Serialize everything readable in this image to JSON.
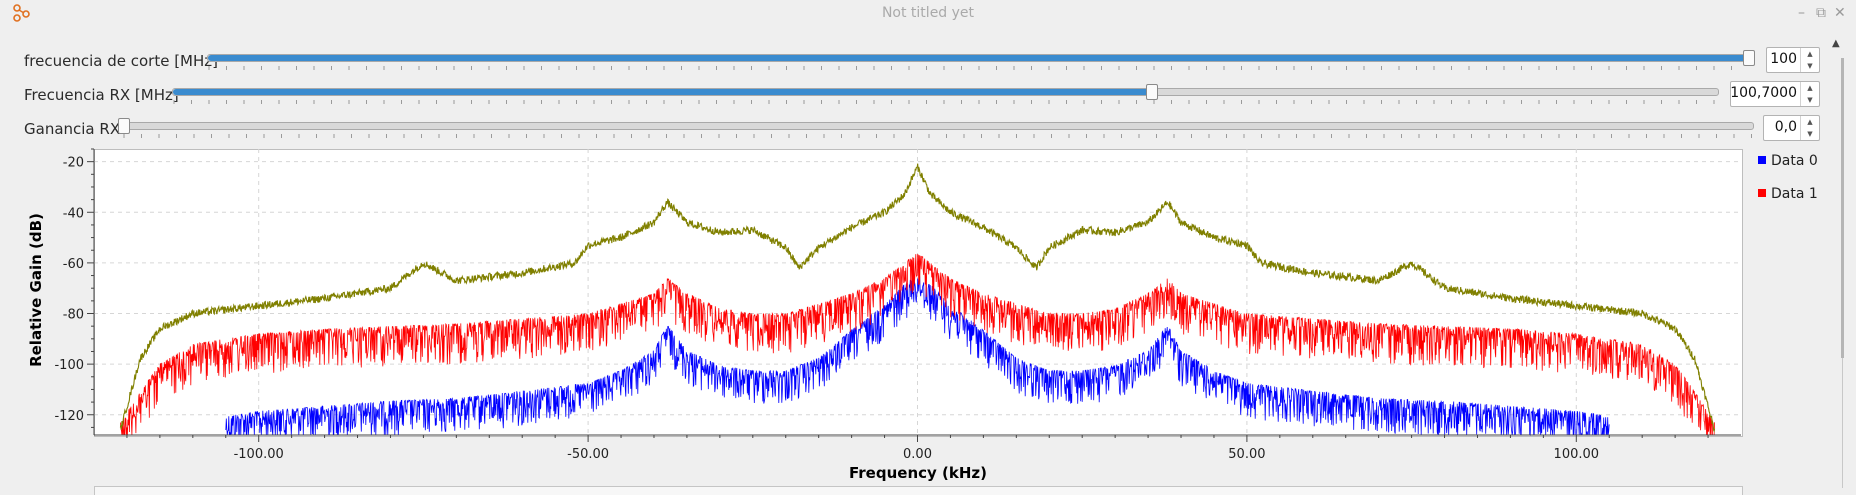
{
  "window": {
    "title": "Not titled yet",
    "app_icon": "gnuradio-logo-icon",
    "buttons": [
      "minimize-icon",
      "restore-icon",
      "close-icon"
    ]
  },
  "controls": [
    {
      "id": "cutoff",
      "label": "frecuencia de corte [MHz]",
      "value": "100",
      "fraction": 1.0
    },
    {
      "id": "rxfreq",
      "label": "Frecuencia RX [MHz]",
      "value": "100,7000",
      "fraction": 0.633
    },
    {
      "id": "gain",
      "label": "Ganancia RX",
      "value": "0,0",
      "fraction": 0.0
    }
  ],
  "legend": [
    {
      "name": "Data 0",
      "color": "#0000ff"
    },
    {
      "name": "Data 1",
      "color": "#ff0000"
    }
  ],
  "chart_data": {
    "type": "line",
    "title": "",
    "xlabel": "Frequency (kHz)",
    "ylabel": "Relative Gain (dB)",
    "xlim": [
      -125,
      125
    ],
    "ylim": [
      -128,
      -15
    ],
    "x_ticks": [
      "-100.00",
      "-50.00",
      "0.00",
      "50.00",
      "100.00"
    ],
    "x_tick_values": [
      -100,
      -50,
      0,
      50,
      100
    ],
    "y_ticks": [
      "-20",
      "-40",
      "-60",
      "-80",
      "-100",
      "-120"
    ],
    "y_tick_values": [
      -20,
      -40,
      -60,
      -80,
      -100,
      -120
    ],
    "grid": true,
    "series": [
      {
        "name": "Data 0",
        "color": "#0000ff",
        "x": [
          -105,
          -100,
          -90,
          -80,
          -70,
          -60,
          -50,
          -45,
          -40,
          -38,
          -35,
          -30,
          -25,
          -20,
          -15,
          -10,
          -5,
          -2,
          0,
          2,
          5,
          10,
          15,
          20,
          25,
          30,
          35,
          38,
          40,
          45,
          50,
          60,
          70,
          80,
          90,
          100,
          105
        ],
        "y": [
          -124,
          -122,
          -120,
          -118,
          -117,
          -114,
          -111,
          -106,
          -98,
          -88,
          -98,
          -104,
          -106,
          -106,
          -101,
          -90,
          -80,
          -72,
          -68,
          -72,
          -80,
          -90,
          -101,
          -106,
          -106,
          -104,
          -98,
          -88,
          -98,
          -106,
          -111,
          -114,
          -117,
          -118,
          -120,
          -122,
          -124
        ]
      },
      {
        "name": "Data 1",
        "color": "#ff0000",
        "x": [
          -121,
          -118,
          -115,
          -110,
          -100,
          -90,
          -80,
          -70,
          -60,
          -50,
          -45,
          -40,
          -38,
          -35,
          -30,
          -25,
          -20,
          -15,
          -10,
          -5,
          -2,
          0,
          2,
          5,
          10,
          15,
          20,
          25,
          30,
          35,
          38,
          40,
          45,
          50,
          60,
          70,
          80,
          90,
          100,
          110,
          115,
          118,
          121
        ],
        "y": [
          -127,
          -115,
          -104,
          -96,
          -92,
          -90,
          -89,
          -88,
          -86,
          -84,
          -80,
          -76,
          -70,
          -76,
          -82,
          -84,
          -84,
          -80,
          -76,
          -70,
          -64,
          -60,
          -64,
          -70,
          -76,
          -80,
          -84,
          -84,
          -82,
          -76,
          -70,
          -76,
          -80,
          -84,
          -86,
          -88,
          -89,
          -90,
          -92,
          -96,
          -104,
          -115,
          -127
        ]
      },
      {
        "name": "",
        "color": "#808000",
        "x": [
          -121,
          -118,
          -115,
          -110,
          -100,
          -90,
          -80,
          -75,
          -70,
          -60,
          -52,
          -50,
          -45,
          -40,
          -38,
          -35,
          -30,
          -25,
          -20,
          -18,
          -15,
          -10,
          -5,
          -2,
          0,
          2,
          5,
          10,
          15,
          18,
          20,
          25,
          30,
          35,
          38,
          40,
          45,
          50,
          52,
          60,
          70,
          75,
          80,
          90,
          100,
          110,
          115,
          118,
          121
        ],
        "y": [
          -126,
          -98,
          -86,
          -80,
          -77,
          -74,
          -70,
          -60,
          -67,
          -64,
          -60,
          -53,
          -50,
          -44,
          -36,
          -44,
          -48,
          -47,
          -54,
          -62,
          -54,
          -46,
          -40,
          -33,
          -22,
          -33,
          -40,
          -46,
          -54,
          -62,
          -54,
          -47,
          -48,
          -44,
          -36,
          -44,
          -50,
          -53,
          -60,
          -64,
          -67,
          -60,
          -70,
          -74,
          -77,
          -80,
          -86,
          -98,
          -126
        ]
      }
    ]
  }
}
